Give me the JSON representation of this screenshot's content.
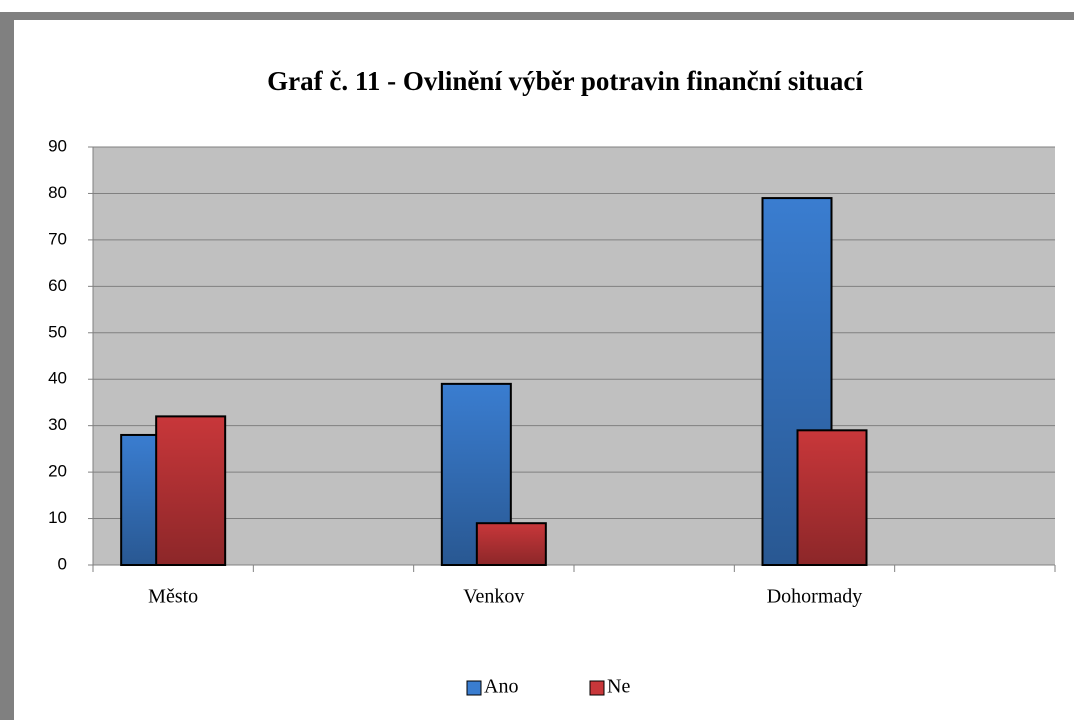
{
  "chart_data": {
    "type": "bar",
    "title": "Graf č. 11 - Ovlinění výběr potravin finanční situací",
    "categories": [
      "Město",
      null,
      "Venkov",
      null,
      "Dohormady",
      null
    ],
    "series": [
      {
        "name": "Ano",
        "color": "#3a7dd0",
        "values": [
          28,
          null,
          39,
          null,
          79,
          null
        ]
      },
      {
        "name": "Ne",
        "color": "#c8373a",
        "values": [
          32,
          null,
          9,
          null,
          29,
          null
        ]
      }
    ],
    "ylim": [
      0,
      90
    ],
    "yticks": [
      0,
      10,
      20,
      30,
      40,
      50,
      60,
      70,
      80,
      90
    ],
    "grid": true,
    "legend": "bottom"
  }
}
